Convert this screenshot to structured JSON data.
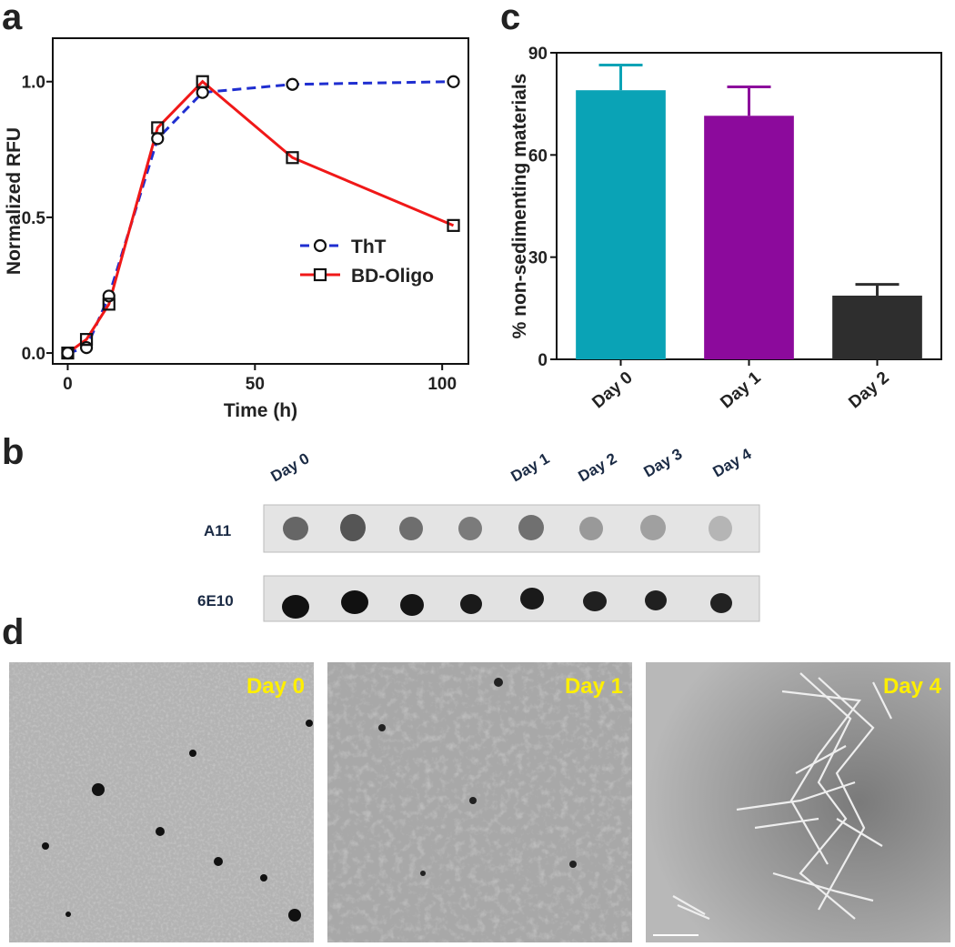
{
  "panel_labels": [
    "a",
    "b",
    "c",
    "d"
  ],
  "chart_data": [
    {
      "type": "line",
      "x_label": "Time (h)",
      "y_label": "Normalized RFU",
      "xlim": [
        -4,
        107
      ],
      "ylim": [
        -0.04,
        1.16
      ],
      "xticks": [
        0,
        50,
        100
      ],
      "yticks": [
        {
          "value": 0,
          "label": "0.0"
        },
        0.5,
        {
          "value": 1,
          "label": "1.0"
        }
      ],
      "x": [
        0,
        5,
        11,
        24,
        36,
        60,
        103
      ],
      "series": [
        {
          "name": "ThT",
          "color": "#1f2ed0",
          "linestyle": "dashed",
          "marker": "circle",
          "values": [
            0,
            0.02,
            0.21,
            0.79,
            0.96,
            0.99,
            1.0
          ]
        },
        {
          "name": "BD-Oligo",
          "color": "#f01818",
          "linestyle": "solid",
          "marker": "square",
          "values": [
            0,
            0.05,
            0.18,
            0.83,
            1.0,
            0.72,
            0.47
          ]
        }
      ],
      "legend": "lower right"
    },
    {
      "type": "bar",
      "y_label": "% non-sedimenting materials",
      "categories": [
        "Day 0",
        "Day 1",
        "Day 2"
      ],
      "values": [
        79,
        71.5,
        18.7
      ],
      "errors": [
        7.4,
        8.5,
        3.3
      ],
      "colors": [
        "#0aa3b6",
        "#8c0a9c",
        "#2e2e2e"
      ],
      "ylim": [
        0,
        90
      ],
      "yticks": [
        0,
        30,
        60,
        90
      ]
    }
  ],
  "dot_blot": {
    "lanes": [
      "Day 0",
      "Day 1",
      "Day 2",
      "Day 3",
      "Day 4"
    ],
    "rows": [
      "A11",
      "6E10"
    ]
  },
  "tem": {
    "labels": [
      "Day 0",
      "Day 1",
      "Day 4"
    ]
  }
}
